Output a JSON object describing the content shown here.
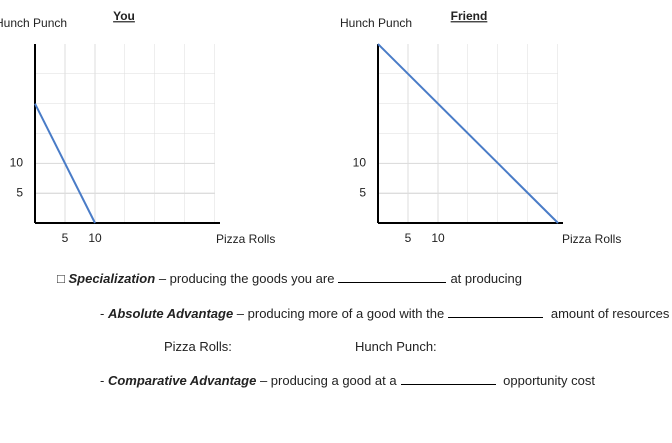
{
  "chart_data": [
    {
      "type": "line",
      "title": "You",
      "x_label": "Pizza Rolls",
      "y_label": "Hunch Punch",
      "x": [
        0,
        10
      ],
      "values": [
        20,
        0
      ],
      "color": "#4a7cc7",
      "xlim": [
        0,
        30
      ],
      "ylim": [
        0,
        30
      ],
      "xticks": [
        5,
        10
      ],
      "yticks": [
        5,
        10
      ],
      "grid": true
    },
    {
      "type": "line",
      "title": "Friend",
      "x_label": "Pizza Rolls",
      "y_label": "Hunch Punch",
      "x": [
        0,
        30
      ],
      "values": [
        30,
        0
      ],
      "color": "#4a7cc7",
      "xlim": [
        0,
        30
      ],
      "ylim": [
        0,
        30
      ],
      "xticks": [
        5,
        10
      ],
      "yticks": [
        5,
        10
      ],
      "grid": true
    }
  ],
  "worksheet": {
    "specialization": {
      "bullet": "□",
      "term": "Specialization",
      "text": "– producing the goods you are",
      "after": "at producing"
    },
    "absolute": {
      "prefix": "-",
      "term": "Absolute Advantage",
      "text": "– producing more of a good with the",
      "after": "amount of resources"
    },
    "answers": {
      "pizza": "Pizza Rolls:",
      "punch": "Hunch Punch:"
    },
    "comparative": {
      "prefix": "-",
      "term": "Comparative Advantage",
      "text": "– producing a good at a",
      "after": "opportunity cost"
    }
  }
}
